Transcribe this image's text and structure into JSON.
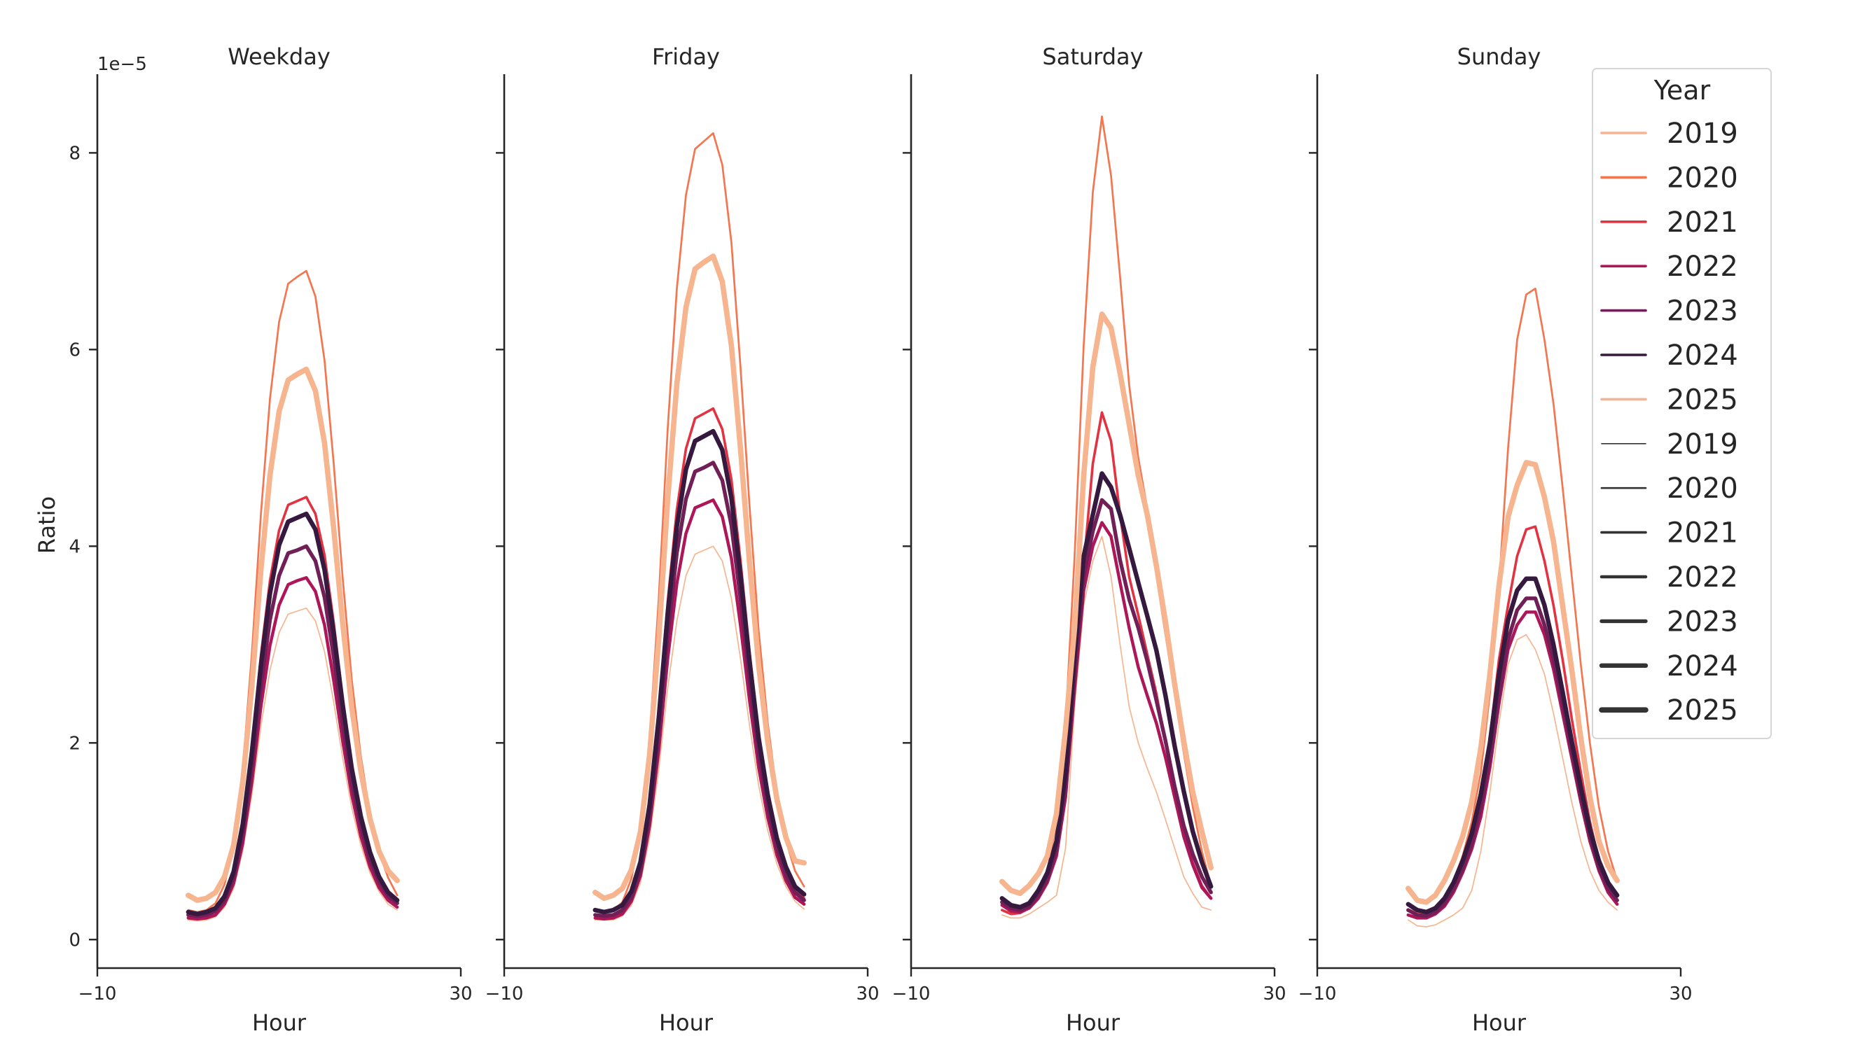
{
  "chart_data": {
    "type": "line",
    "offset_label": "1e−5",
    "ylabel": "Ratio",
    "ylim": [
      -0.29,
      8.8
    ],
    "yticks": [
      0,
      2,
      4,
      6,
      8
    ],
    "y_unit_multiplier": 1e-05,
    "xlim": [
      -10,
      30
    ],
    "xticks": [
      -10,
      30
    ],
    "grid": false,
    "legend": {
      "title": "Year",
      "placement": "right",
      "hue_entries": [
        "2019",
        "2020",
        "2021",
        "2022",
        "2023",
        "2024",
        "2025"
      ],
      "size_entries": [
        "2019",
        "2020",
        "2021",
        "2022",
        "2023",
        "2024",
        "2025"
      ]
    },
    "colors": {
      "2019": "#f6b48f",
      "2020": "#f37651",
      "2021": "#e13342",
      "2022": "#ad1759",
      "2023": "#701f57",
      "2024": "#35193e",
      "2025": "#f6b48f"
    },
    "x": [
      0,
      1,
      2,
      3,
      4,
      5,
      6,
      7,
      8,
      9,
      10,
      11,
      12,
      13,
      14,
      15,
      16,
      17,
      18,
      19,
      20,
      21,
      22,
      23
    ],
    "panels": [
      {
        "title": "Weekday",
        "xlabel": "Hour",
        "series": [
          {
            "name": "2019",
            "values": [
              0.2,
              0.19,
              0.2,
              0.23,
              0.33,
              0.52,
              0.9,
              1.47,
              2.17,
              2.74,
              3.12,
              3.31,
              3.34,
              3.37,
              3.24,
              2.93,
              2.42,
              1.85,
              1.34,
              0.96,
              0.68,
              0.49,
              0.36,
              0.3
            ]
          },
          {
            "name": "2020",
            "values": [
              0.3,
              0.28,
              0.3,
              0.37,
              0.56,
              0.95,
              1.73,
              2.9,
              4.33,
              5.5,
              6.28,
              6.67,
              6.74,
              6.8,
              6.54,
              5.89,
              4.85,
              3.68,
              2.64,
              1.86,
              1.28,
              0.89,
              0.63,
              0.45
            ]
          },
          {
            "name": "2021",
            "values": [
              0.25,
              0.24,
              0.25,
              0.29,
              0.42,
              0.68,
              1.19,
              1.95,
              2.89,
              3.65,
              4.16,
              4.42,
              4.46,
              4.5,
              4.33,
              3.91,
              3.23,
              2.46,
              1.78,
              1.27,
              0.89,
              0.63,
              0.46,
              0.38
            ]
          },
          {
            "name": "2022",
            "values": [
              0.22,
              0.21,
              0.22,
              0.25,
              0.36,
              0.57,
              0.98,
              1.6,
              2.37,
              2.99,
              3.4,
              3.61,
              3.65,
              3.68,
              3.54,
              3.2,
              2.64,
              2.02,
              1.47,
              1.05,
              0.74,
              0.53,
              0.4,
              0.33
            ]
          },
          {
            "name": "2023",
            "values": [
              0.25,
              0.24,
              0.25,
              0.29,
              0.4,
              0.63,
              1.08,
              1.75,
              2.58,
              3.25,
              3.7,
              3.93,
              3.96,
              4.0,
              3.85,
              3.48,
              2.88,
              2.2,
              1.6,
              1.15,
              0.81,
              0.59,
              0.44,
              0.37
            ]
          },
          {
            "name": "2024",
            "values": [
              0.28,
              0.26,
              0.28,
              0.32,
              0.44,
              0.69,
              1.17,
              1.9,
              2.79,
              3.52,
              4.01,
              4.25,
              4.29,
              4.33,
              4.17,
              3.76,
              3.12,
              2.39,
              1.74,
              1.25,
              0.89,
              0.64,
              0.48,
              0.4
            ]
          },
          {
            "name": "2025",
            "values": [
              0.45,
              0.4,
              0.42,
              0.48,
              0.64,
              0.96,
              1.6,
              2.57,
              3.76,
              4.72,
              5.37,
              5.69,
              5.75,
              5.8,
              5.58,
              5.05,
              4.19,
              3.22,
              2.36,
              1.71,
              1.23,
              0.9,
              0.7,
              0.6
            ]
          }
        ]
      },
      {
        "title": "Friday",
        "xlabel": "Hour",
        "series": [
          {
            "name": "2019",
            "values": [
              0.2,
              0.2,
              0.2,
              0.24,
              0.35,
              0.58,
              1.04,
              1.72,
              2.56,
              3.24,
              3.7,
              3.92,
              3.96,
              4.0,
              3.85,
              3.47,
              2.86,
              2.18,
              1.57,
              1.11,
              0.77,
              0.54,
              0.39,
              0.31
            ]
          },
          {
            "name": "2020",
            "values": [
              0.3,
              0.28,
              0.3,
              0.38,
              0.62,
              1.09,
              2.04,
              3.46,
              5.2,
              6.62,
              7.57,
              8.04,
              8.12,
              8.2,
              7.88,
              7.09,
              5.83,
              4.41,
              3.14,
              2.2,
              1.49,
              1.01,
              0.7,
              0.54
            ]
          },
          {
            "name": "2021",
            "values": [
              0.25,
              0.24,
              0.25,
              0.3,
              0.46,
              0.77,
              1.38,
              2.31,
              3.44,
              4.37,
              4.99,
              5.3,
              5.35,
              5.4,
              5.19,
              4.68,
              3.86,
              2.93,
              2.1,
              1.49,
              1.02,
              0.71,
              0.51,
              0.42
            ]
          },
          {
            "name": "2022",
            "values": [
              0.22,
              0.21,
              0.22,
              0.26,
              0.39,
              0.65,
              1.16,
              1.92,
              2.86,
              3.62,
              4.13,
              4.39,
              4.43,
              4.47,
              4.3,
              3.88,
              3.2,
              2.43,
              1.75,
              1.24,
              0.86,
              0.6,
              0.43,
              0.36
            ]
          },
          {
            "name": "2023",
            "values": [
              0.25,
              0.24,
              0.25,
              0.3,
              0.43,
              0.71,
              1.26,
              2.09,
              3.1,
              3.93,
              4.48,
              4.76,
              4.8,
              4.85,
              4.67,
              4.21,
              3.47,
              2.64,
              1.9,
              1.35,
              0.94,
              0.66,
              0.48,
              0.4
            ]
          },
          {
            "name": "2024",
            "values": [
              0.3,
              0.28,
              0.3,
              0.35,
              0.49,
              0.79,
              1.37,
              2.25,
              3.32,
              4.2,
              4.78,
              5.07,
              5.12,
              5.17,
              4.98,
              4.49,
              3.71,
              2.83,
              2.05,
              1.47,
              1.03,
              0.74,
              0.54,
              0.46
            ]
          },
          {
            "name": "2025",
            "values": [
              0.48,
              0.42,
              0.45,
              0.52,
              0.71,
              1.1,
              1.88,
              3.05,
              4.48,
              5.65,
              6.43,
              6.82,
              6.89,
              6.95,
              6.69,
              6.04,
              5.0,
              3.83,
              2.79,
              2.01,
              1.43,
              1.04,
              0.8,
              0.78
            ]
          }
        ]
      },
      {
        "title": "Saturday",
        "xlabel": "Hour",
        "series": [
          {
            "name": "2019",
            "values": [
              0.25,
              0.22,
              0.22,
              0.26,
              0.32,
              0.38,
              0.45,
              0.93,
              2.37,
              3.4,
              3.85,
              4.1,
              3.69,
              3.0,
              2.37,
              2.0,
              1.74,
              1.5,
              1.22,
              0.93,
              0.64,
              0.47,
              0.33,
              0.3
            ]
          },
          {
            "name": "2020",
            "values": [
              0.3,
              0.27,
              0.28,
              0.33,
              0.45,
              0.7,
              1.2,
              2.2,
              3.9,
              6.05,
              7.6,
              8.37,
              7.77,
              6.74,
              5.64,
              4.9,
              4.38,
              3.7,
              3.1,
              2.5,
              1.9,
              1.35,
              0.9,
              0.55
            ]
          },
          {
            "name": "2021",
            "values": [
              0.3,
              0.26,
              0.27,
              0.32,
              0.42,
              0.62,
              1.0,
              1.8,
              3.0,
              3.8,
              4.84,
              5.36,
              5.07,
              4.32,
              3.69,
              3.3,
              2.9,
              2.5,
              2.0,
              1.55,
              1.1,
              0.78,
              0.55,
              0.42
            ]
          },
          {
            "name": "2022",
            "values": [
              0.35,
              0.29,
              0.28,
              0.32,
              0.42,
              0.58,
              0.85,
              1.45,
              2.55,
              3.55,
              4.0,
              4.24,
              4.1,
              3.63,
              3.17,
              2.77,
              2.48,
              2.2,
              1.85,
              1.45,
              1.05,
              0.76,
              0.53,
              0.42
            ]
          },
          {
            "name": "2023",
            "values": [
              0.38,
              0.32,
              0.3,
              0.34,
              0.45,
              0.62,
              0.92,
              1.55,
              2.7,
              3.7,
              4.15,
              4.47,
              4.38,
              3.86,
              3.46,
              3.17,
              2.83,
              2.43,
              2.02,
              1.56,
              1.16,
              0.87,
              0.64,
              0.48
            ]
          },
          {
            "name": "2024",
            "values": [
              0.42,
              0.35,
              0.33,
              0.37,
              0.5,
              0.68,
              1.0,
              1.7,
              2.9,
              3.9,
              4.32,
              4.74,
              4.6,
              4.32,
              3.98,
              3.63,
              3.29,
              2.94,
              2.48,
              1.97,
              1.51,
              1.1,
              0.79,
              0.54
            ]
          },
          {
            "name": "2025",
            "values": [
              0.59,
              0.5,
              0.47,
              0.55,
              0.67,
              0.85,
              1.28,
              2.14,
              3.17,
              4.72,
              5.82,
              6.36,
              6.22,
              5.76,
              5.24,
              4.72,
              4.32,
              3.8,
              3.23,
              2.6,
              2.02,
              1.5,
              1.1,
              0.73
            ]
          }
        ]
      },
      {
        "title": "Sunday",
        "xlabel": "Hour",
        "series": [
          {
            "name": "2019",
            "values": [
              0.2,
              0.14,
              0.13,
              0.15,
              0.2,
              0.25,
              0.32,
              0.5,
              0.9,
              1.5,
              2.2,
              2.8,
              3.05,
              3.1,
              2.95,
              2.7,
              2.3,
              1.85,
              1.4,
              1.0,
              0.7,
              0.5,
              0.38,
              0.3
            ]
          },
          {
            "name": "2020",
            "values": [
              0.35,
              0.27,
              0.25,
              0.3,
              0.4,
              0.6,
              0.85,
              1.2,
              1.7,
              2.5,
              3.6,
              5.0,
              6.1,
              6.56,
              6.62,
              6.1,
              5.45,
              4.6,
              3.7,
              2.8,
              2.0,
              1.35,
              0.9,
              0.6
            ]
          },
          {
            "name": "2021",
            "values": [
              0.3,
              0.25,
              0.23,
              0.28,
              0.38,
              0.55,
              0.78,
              1.05,
              1.45,
              2.05,
              2.85,
              3.4,
              3.9,
              4.17,
              4.2,
              3.85,
              3.4,
              2.85,
              2.25,
              1.7,
              1.2,
              0.8,
              0.55,
              0.4
            ]
          },
          {
            "name": "2022",
            "values": [
              0.25,
              0.22,
              0.22,
              0.26,
              0.34,
              0.48,
              0.68,
              0.92,
              1.25,
              1.75,
              2.4,
              2.95,
              3.2,
              3.33,
              3.33,
              3.1,
              2.75,
              2.3,
              1.85,
              1.4,
              1.0,
              0.7,
              0.48,
              0.36
            ]
          },
          {
            "name": "2023",
            "values": [
              0.3,
              0.25,
              0.24,
              0.28,
              0.37,
              0.52,
              0.72,
              0.98,
              1.35,
              1.85,
              2.5,
              3.05,
              3.35,
              3.47,
              3.47,
              3.2,
              2.85,
              2.4,
              1.92,
              1.45,
              1.05,
              0.73,
              0.52,
              0.4
            ]
          },
          {
            "name": "2024",
            "values": [
              0.36,
              0.3,
              0.28,
              0.32,
              0.42,
              0.58,
              0.8,
              1.08,
              1.48,
              2.0,
              2.7,
              3.25,
              3.55,
              3.67,
              3.67,
              3.4,
              3.0,
              2.52,
              2.02,
              1.55,
              1.12,
              0.8,
              0.58,
              0.45
            ]
          },
          {
            "name": "2025",
            "values": [
              0.52,
              0.4,
              0.38,
              0.45,
              0.6,
              0.8,
              1.05,
              1.4,
              1.95,
              2.7,
              3.6,
              4.3,
              4.62,
              4.85,
              4.83,
              4.5,
              4.05,
              3.4,
              2.75,
              2.05,
              1.45,
              1.0,
              0.75,
              0.6
            ]
          }
        ]
      }
    ]
  }
}
